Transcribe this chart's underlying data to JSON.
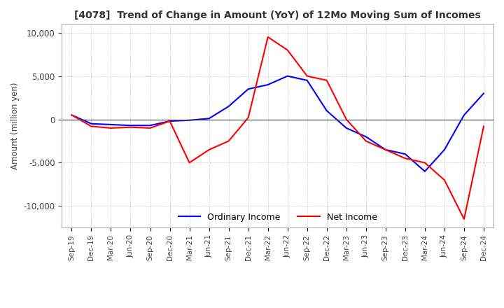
{
  "title": "[4078]  Trend of Change in Amount (YoY) of 12Mo Moving Sum of Incomes",
  "ylabel": "Amount (million yen)",
  "ylim": [
    -12500,
    11000
  ],
  "yticks": [
    -10000,
    -5000,
    0,
    5000,
    10000
  ],
  "background_color": "#ffffff",
  "ordinary_income_color": "#0000ff",
  "net_income_color": "#ff0000",
  "x_labels": [
    "Sep-19",
    "Dec-19",
    "Mar-20",
    "Jun-20",
    "Sep-20",
    "Dec-20",
    "Mar-21",
    "Jun-21",
    "Sep-21",
    "Dec-21",
    "Mar-22",
    "Jun-22",
    "Sep-22",
    "Dec-22",
    "Mar-23",
    "Jun-23",
    "Sep-23",
    "Dec-23",
    "Mar-24",
    "Jun-24",
    "Sep-24",
    "Dec-24"
  ],
  "ordinary_income": [
    500,
    -500,
    -600,
    -700,
    -700,
    -200,
    -100,
    100,
    1500,
    3500,
    4000,
    5000,
    4500,
    1000,
    -1000,
    -2000,
    -3500,
    -4000,
    -6000,
    -3500,
    500,
    3000
  ],
  "net_income": [
    500,
    -800,
    -1000,
    -900,
    -1000,
    -200,
    -5000,
    -3500,
    -2500,
    200,
    9500,
    8000,
    5000,
    4500,
    0,
    -2500,
    -3500,
    -4500,
    -5000,
    -7000,
    -11500,
    -800
  ]
}
